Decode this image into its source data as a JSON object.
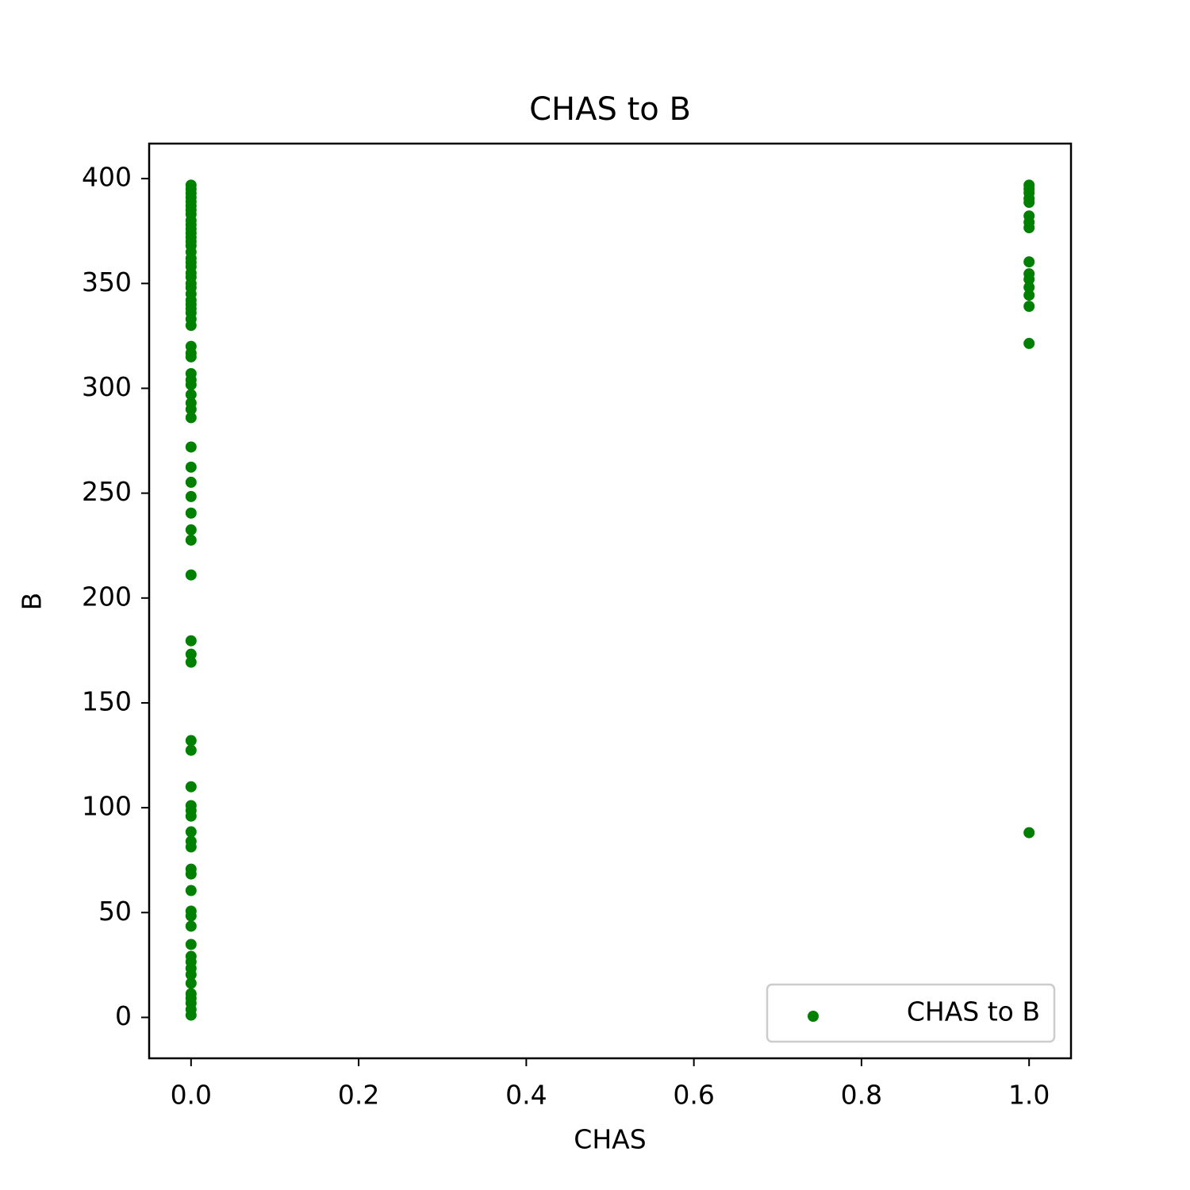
{
  "chart_data": {
    "type": "scatter",
    "title": "CHAS to B",
    "x_label": "CHAS",
    "y_label": "B",
    "series": [
      {
        "name": "CHAS to B",
        "color": "#008000",
        "x": [
          0,
          0,
          0,
          0,
          0,
          0,
          0,
          0,
          0,
          0,
          0,
          0,
          0,
          0,
          0,
          0,
          0,
          0,
          0,
          0,
          0,
          0,
          0,
          0,
          0,
          0,
          0,
          0,
          0,
          0,
          0,
          0,
          0,
          0,
          0,
          0,
          0,
          0,
          0,
          0,
          0,
          0,
          0,
          0,
          0,
          0,
          0,
          0,
          0,
          0,
          0,
          0,
          0,
          0,
          0,
          0,
          0,
          0,
          0,
          0,
          0,
          0,
          0,
          0,
          0,
          0,
          0,
          0,
          0,
          0,
          0,
          0,
          0,
          0,
          0,
          0,
          0,
          1,
          1,
          1,
          1,
          1,
          1,
          1,
          1,
          1,
          1,
          1,
          1,
          1,
          1,
          1,
          1
        ],
        "values": [
          396.9,
          395,
          393,
          391,
          389,
          387,
          385,
          383,
          380,
          378,
          376,
          374,
          372,
          370,
          368,
          365,
          362,
          360,
          358,
          355,
          353,
          350,
          348,
          345,
          342,
          340,
          338,
          336,
          333,
          330,
          320,
          316.8,
          315,
          307,
          304,
          301.7,
          297,
          293,
          290,
          286,
          272,
          262.4,
          255.2,
          248.4,
          240.5,
          232.5,
          227.6,
          211,
          179.6,
          173.2,
          169.4,
          132,
          127.4,
          110,
          101,
          98.7,
          96,
          88.5,
          84,
          81.3,
          70.7,
          68.4,
          60.5,
          50.7,
          48.4,
          43.5,
          34.8,
          29.1,
          26.5,
          23.4,
          20.4,
          16.3,
          11.3,
          9.1,
          6.8,
          3.8,
          1.1,
          396.9,
          395.1,
          393.2,
          390.5,
          388.7,
          382.2,
          379.2,
          376.6,
          360.3,
          354.6,
          352,
          348.2,
          344.4,
          339.1,
          321.4,
          88.1
        ]
      }
    ],
    "xlim": [
      -0.05,
      1.05
    ],
    "ylim": [
      -19.5,
      416.7
    ],
    "xticks": [
      {
        "value": 0,
        "label": "0.0"
      },
      0.2,
      0.4,
      0.6,
      0.8,
      {
        "value": 1,
        "label": "1.0"
      }
    ],
    "yticks": [
      0,
      50,
      100,
      150,
      200,
      250,
      300,
      350,
      400
    ],
    "legend": "lower right"
  }
}
